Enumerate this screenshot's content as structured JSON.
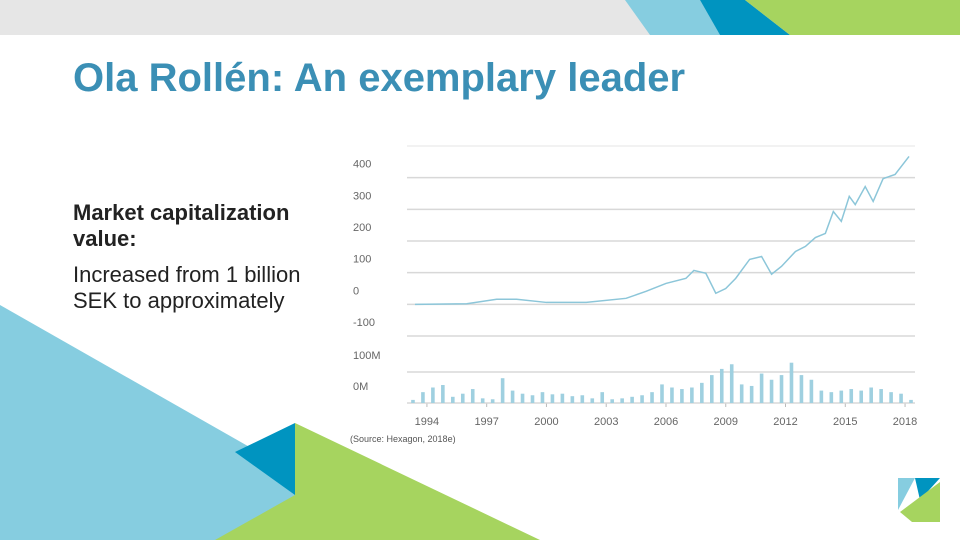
{
  "slide": {
    "title": "Ola Rollén: An exemplary leader",
    "heading": "Market capitalization value:",
    "body": "Increased from 1 billion SEK to approximately",
    "source": "(Source: Hexagon, 2018e)"
  },
  "chart_data": [
    {
      "type": "line",
      "xlim": [
        1993,
        2018.5
      ],
      "ylim": [
        -100,
        500
      ],
      "yticks": [
        -100,
        0,
        100,
        200,
        300,
        400
      ],
      "xticks": [
        1994,
        1997,
        2000,
        2003,
        2006,
        2009,
        2012,
        2015,
        2018
      ],
      "grid": true,
      "series": [
        {
          "color": "#8cc6d9",
          "x": [
            1993.4,
            1996,
            1997.5,
            1998.5,
            2000,
            2002,
            2004,
            2005,
            2006,
            2007,
            2007.4,
            2008,
            2008.5,
            2009,
            2009.5,
            2010.2,
            2010.8,
            2011.3,
            2011.8,
            2012.5,
            2013,
            2013.5,
            2014,
            2014.4,
            2014.8,
            2015.2,
            2015.5,
            2016,
            2016.4,
            2016.9,
            2017.5,
            2018.2
          ],
          "values": [
            0,
            2,
            16,
            16,
            6,
            6,
            19,
            41,
            66,
            82,
            107,
            98,
            35,
            50,
            82,
            142,
            151,
            95,
            120,
            167,
            183,
            211,
            224,
            293,
            262,
            341,
            315,
            372,
            325,
            397,
            410,
            467
          ]
        }
      ]
    },
    {
      "type": "bar",
      "xlim": [
        1993,
        2018.5
      ],
      "ylim": [
        0,
        200
      ],
      "yticks": [
        {
          "value": 0,
          "label": "0M"
        },
        {
          "value": 100,
          "label": "100M"
        }
      ],
      "grid": true,
      "color": "#9fd0e0",
      "x": [
        1993.3,
        1993.8,
        1994.3,
        1994.8,
        1995.3,
        1995.8,
        1996.3,
        1996.8,
        1997.3,
        1997.8,
        1998.3,
        1998.8,
        1999.3,
        1999.8,
        2000.3,
        2000.8,
        2001.3,
        2001.8,
        2002.3,
        2002.8,
        2003.3,
        2003.8,
        2004.3,
        2004.8,
        2005.3,
        2005.8,
        2006.3,
        2006.8,
        2007.3,
        2007.8,
        2008.3,
        2008.8,
        2009.3,
        2009.8,
        2010.3,
        2010.8,
        2011.3,
        2011.8,
        2012.3,
        2012.8,
        2013.3,
        2013.8,
        2014.3,
        2014.8,
        2015.3,
        2015.8,
        2016.3,
        2016.8,
        2017.3,
        2017.8,
        2018.3
      ],
      "values": [
        10,
        35,
        50,
        58,
        20,
        30,
        45,
        15,
        12,
        80,
        40,
        30,
        25,
        35,
        28,
        30,
        22,
        25,
        15,
        35,
        12,
        15,
        20,
        25,
        35,
        60,
        50,
        45,
        50,
        65,
        90,
        110,
        125,
        60,
        55,
        95,
        75,
        90,
        130,
        90,
        75,
        40,
        35,
        40,
        45,
        40,
        50,
        45,
        35,
        30,
        10
      ]
    }
  ]
}
